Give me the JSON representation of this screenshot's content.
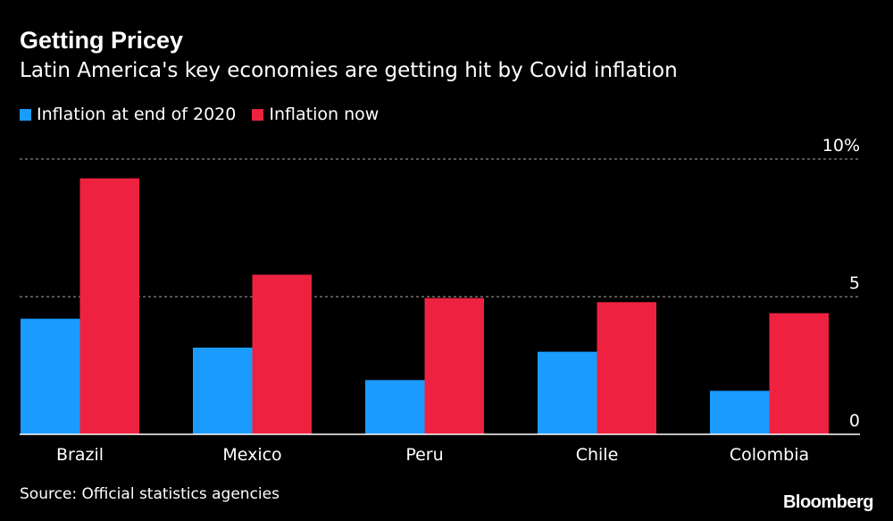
{
  "chart_data": {
    "type": "bar",
    "title": "Getting Pricey",
    "subtitle": "Latin America's key economies are getting hit by Covid inflation",
    "categories": [
      "Brazil",
      "Mexico",
      "Peru",
      "Chile",
      "Colombia"
    ],
    "series": [
      {
        "name": "Inflation at end of 2020",
        "color": "#1a9cff",
        "values": [
          4.2,
          3.15,
          1.97,
          3.0,
          1.58
        ]
      },
      {
        "name": "Inflation now",
        "color": "#ee2240",
        "values": [
          9.3,
          5.8,
          4.95,
          4.8,
          4.4
        ]
      }
    ],
    "ylim": [
      0,
      10
    ],
    "yticks": [
      0,
      5,
      10
    ],
    "ytick_labels": [
      "0",
      "5",
      "10%"
    ],
    "grid": true,
    "legend_position": "top-left",
    "source": "Source: Official statistics agencies",
    "brand": "Bloomberg"
  }
}
